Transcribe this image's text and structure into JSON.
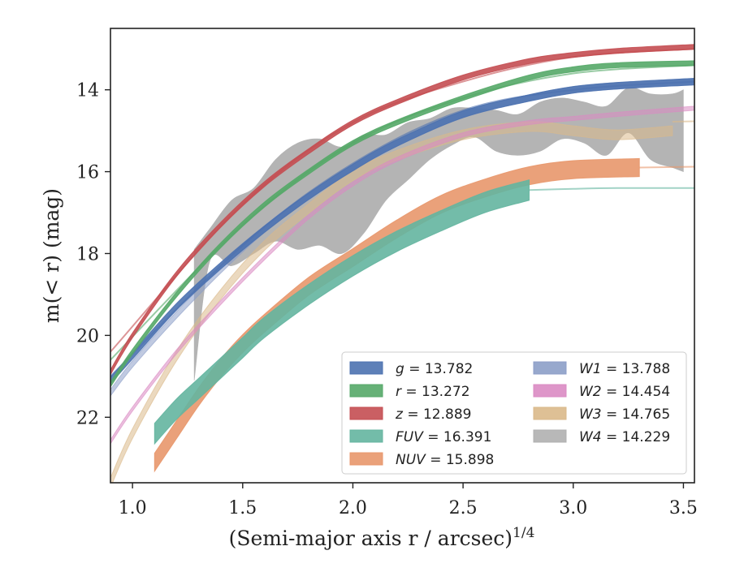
{
  "chart_data": {
    "type": "area",
    "xlabel": "(Semi-major axis r / arcsec)",
    "xlabel_power": "1/4",
    "ylabel": "m(< r) (mag)",
    "xlim": [
      0.9,
      3.55
    ],
    "ylim": [
      23.6,
      12.5
    ],
    "y_inverted": true,
    "grid": false,
    "legend_placement": "lower-right",
    "xticks": [
      1.0,
      1.5,
      2.0,
      2.5,
      3.0,
      3.5
    ],
    "xtick_labels": [
      "1.0",
      "1.5",
      "2.0",
      "2.5",
      "3.0",
      "3.5"
    ],
    "yticks": [
      14,
      16,
      18,
      20,
      22
    ],
    "ytick_labels": [
      "14",
      "16",
      "18",
      "20",
      "22"
    ],
    "series": [
      {
        "name": "g = 13.782",
        "color": "#4c72b0",
        "x": [
          0.9,
          1.0,
          1.2,
          1.4,
          1.6,
          1.8,
          2.0,
          2.2,
          2.5,
          2.8,
          3.0,
          3.2,
          3.55
        ],
        "y": [
          21.1,
          20.5,
          19.3,
          18.3,
          17.4,
          16.6,
          15.9,
          15.3,
          14.6,
          14.2,
          14.0,
          13.9,
          13.8
        ],
        "halfwidth": 0.08,
        "fit_x": [
          0.9,
          1.5,
          2.0,
          2.5,
          3.0,
          3.55
        ],
        "fit_y": [
          21.0,
          17.8,
          15.8,
          14.5,
          14.0,
          13.8
        ]
      },
      {
        "name": "r = 13.272",
        "color": "#55a868",
        "x": [
          0.9,
          1.0,
          1.2,
          1.4,
          1.6,
          1.8,
          2.0,
          2.2,
          2.5,
          2.8,
          3.0,
          3.2,
          3.55
        ],
        "y": [
          21.2,
          20.4,
          19.0,
          17.8,
          16.8,
          16.0,
          15.3,
          14.8,
          14.2,
          13.7,
          13.5,
          13.4,
          13.35
        ],
        "halfwidth": 0.06,
        "fit_x": [
          0.9,
          1.5,
          2.0,
          2.5,
          3.0,
          3.55
        ],
        "fit_y": [
          20.6,
          17.3,
          15.3,
          14.2,
          13.6,
          13.4
        ]
      },
      {
        "name": "z = 12.889",
        "color": "#c44e52",
        "x": [
          0.9,
          1.0,
          1.2,
          1.4,
          1.6,
          1.8,
          2.0,
          2.2,
          2.5,
          2.8,
          3.0,
          3.2,
          3.55
        ],
        "y": [
          20.9,
          20.0,
          18.5,
          17.3,
          16.3,
          15.5,
          14.8,
          14.3,
          13.7,
          13.3,
          13.15,
          13.05,
          12.95
        ],
        "halfwidth": 0.06,
        "fit_x": [
          0.9,
          1.5,
          2.0,
          2.5,
          3.0,
          3.55
        ],
        "fit_y": [
          20.4,
          16.8,
          14.8,
          13.8,
          13.2,
          13.0
        ]
      },
      {
        "name": "FUV = 16.391",
        "color": "#64b5a0",
        "x": [
          1.1,
          1.2,
          1.3,
          1.4,
          1.5,
          1.6,
          1.8,
          2.0,
          2.2,
          2.4,
          2.6,
          2.8
        ],
        "y": [
          22.4,
          21.8,
          21.3,
          20.8,
          20.3,
          19.8,
          19.0,
          18.3,
          17.7,
          17.2,
          16.75,
          16.45
        ],
        "halfwidth": 0.25,
        "fit_x": [
          2.8,
          3.0,
          3.2,
          3.55
        ],
        "fit_y": [
          16.45,
          16.42,
          16.4,
          16.4
        ]
      },
      {
        "name": "NUV = 15.898",
        "color": "#e8976c",
        "x": [
          1.1,
          1.2,
          1.3,
          1.4,
          1.5,
          1.6,
          1.8,
          2.0,
          2.2,
          2.4,
          2.6,
          2.8,
          3.0,
          3.3
        ],
        "y": [
          23.1,
          22.3,
          21.5,
          20.8,
          20.2,
          19.7,
          18.8,
          18.1,
          17.4,
          16.8,
          16.4,
          16.1,
          15.95,
          15.9
        ],
        "halfwidth": 0.22,
        "fit_x": [
          3.3,
          3.55
        ],
        "fit_y": [
          15.9,
          15.88
        ]
      },
      {
        "name": "W1 = 13.788",
        "color": "#8c9ec8",
        "x": [
          0.9,
          1.0,
          1.2,
          1.4,
          1.6,
          1.8,
          2.0,
          2.2,
          2.5,
          2.8,
          3.0,
          3.2,
          3.55
        ],
        "y": [
          21.4,
          20.7,
          19.5,
          18.4,
          17.4,
          16.6,
          15.9,
          15.3,
          14.6,
          14.2,
          14.0,
          13.9,
          13.8
        ],
        "halfwidth": 0.08,
        "fit_x": [],
        "fit_y": []
      },
      {
        "name": "W2 = 14.454",
        "color": "#da8bc3",
        "x": [
          0.9,
          1.0,
          1.2,
          1.4,
          1.6,
          1.8,
          2.0,
          2.2,
          2.5,
          2.8,
          3.0,
          3.2,
          3.55
        ],
        "y": [
          22.6,
          21.8,
          20.4,
          19.2,
          18.1,
          17.1,
          16.3,
          15.7,
          15.1,
          14.8,
          14.7,
          14.6,
          14.45
        ],
        "halfwidth": 0.05,
        "fit_x": [],
        "fit_y": []
      },
      {
        "name": "W3 = 14.765",
        "color": "#dab98a",
        "x": [
          0.9,
          1.0,
          1.2,
          1.4,
          1.6,
          1.8,
          2.0,
          2.2,
          2.5,
          2.8,
          3.0,
          3.2,
          3.45
        ],
        "y": [
          23.6,
          22.4,
          20.5,
          19.0,
          17.8,
          16.9,
          16.1,
          15.6,
          15.1,
          14.9,
          15.0,
          15.1,
          15.0
        ],
        "halfwidth": 0.12,
        "fit_x": [
          3.45,
          3.55
        ],
        "fit_y": [
          14.78,
          14.77
        ]
      },
      {
        "name": "W4 = 14.229",
        "color": "#b0b0b0",
        "x": [
          1.28,
          1.35,
          1.45,
          1.55,
          1.65,
          1.75,
          1.85,
          1.95,
          2.05,
          2.15,
          2.25,
          2.35,
          2.45,
          2.55,
          2.65,
          2.75,
          2.85,
          2.95,
          3.05,
          3.15,
          3.25,
          3.35,
          3.45,
          3.5
        ],
        "y": [
          19.5,
          17.8,
          17.5,
          17.2,
          16.7,
          16.6,
          16.5,
          16.7,
          16.3,
          15.9,
          15.5,
          15.2,
          14.9,
          14.8,
          15.0,
          15.1,
          14.9,
          14.7,
          14.8,
          15.0,
          14.5,
          14.9,
          15.0,
          15.0
        ],
        "halfwidth": [
          1.6,
          0.4,
          0.8,
          0.8,
          1.0,
          1.3,
          1.3,
          1.3,
          1.2,
          0.8,
          0.7,
          0.5,
          0.45,
          0.35,
          0.5,
          0.5,
          0.6,
          0.5,
          0.5,
          0.6,
          0.55,
          0.8,
          0.9,
          1.0
        ],
        "fit_x": [],
        "fit_y": []
      }
    ],
    "legend": {
      "columns": [
        [
          "g = 13.782",
          "r = 13.272",
          "z = 12.889",
          "FUV = 16.391",
          "NUV = 15.898"
        ],
        [
          "W1 = 13.788",
          "W2 = 14.454",
          "W3 = 14.765",
          "W4 = 14.229"
        ]
      ],
      "entries": [
        {
          "italic": "g",
          "value": " = 13.782",
          "color": "#4c72b0"
        },
        {
          "italic": "r",
          "value": " = 13.272",
          "color": "#55a868"
        },
        {
          "italic": "z",
          "value": " = 12.889",
          "color": "#c44e52"
        },
        {
          "italic": "FUV",
          "value": " = 16.391",
          "color": "#64b5a0"
        },
        {
          "italic": "NUV",
          "value": " = 15.898",
          "color": "#e8976c"
        },
        {
          "italic": "W1",
          "value": " = 13.788",
          "color": "#8c9ec8"
        },
        {
          "italic": "W2",
          "value": " = 14.454",
          "color": "#da8bc3"
        },
        {
          "italic": "W3",
          "value": " = 14.765",
          "color": "#dab98a"
        },
        {
          "italic": "W4",
          "value": " = 14.229",
          "color": "#b0b0b0"
        }
      ]
    }
  }
}
